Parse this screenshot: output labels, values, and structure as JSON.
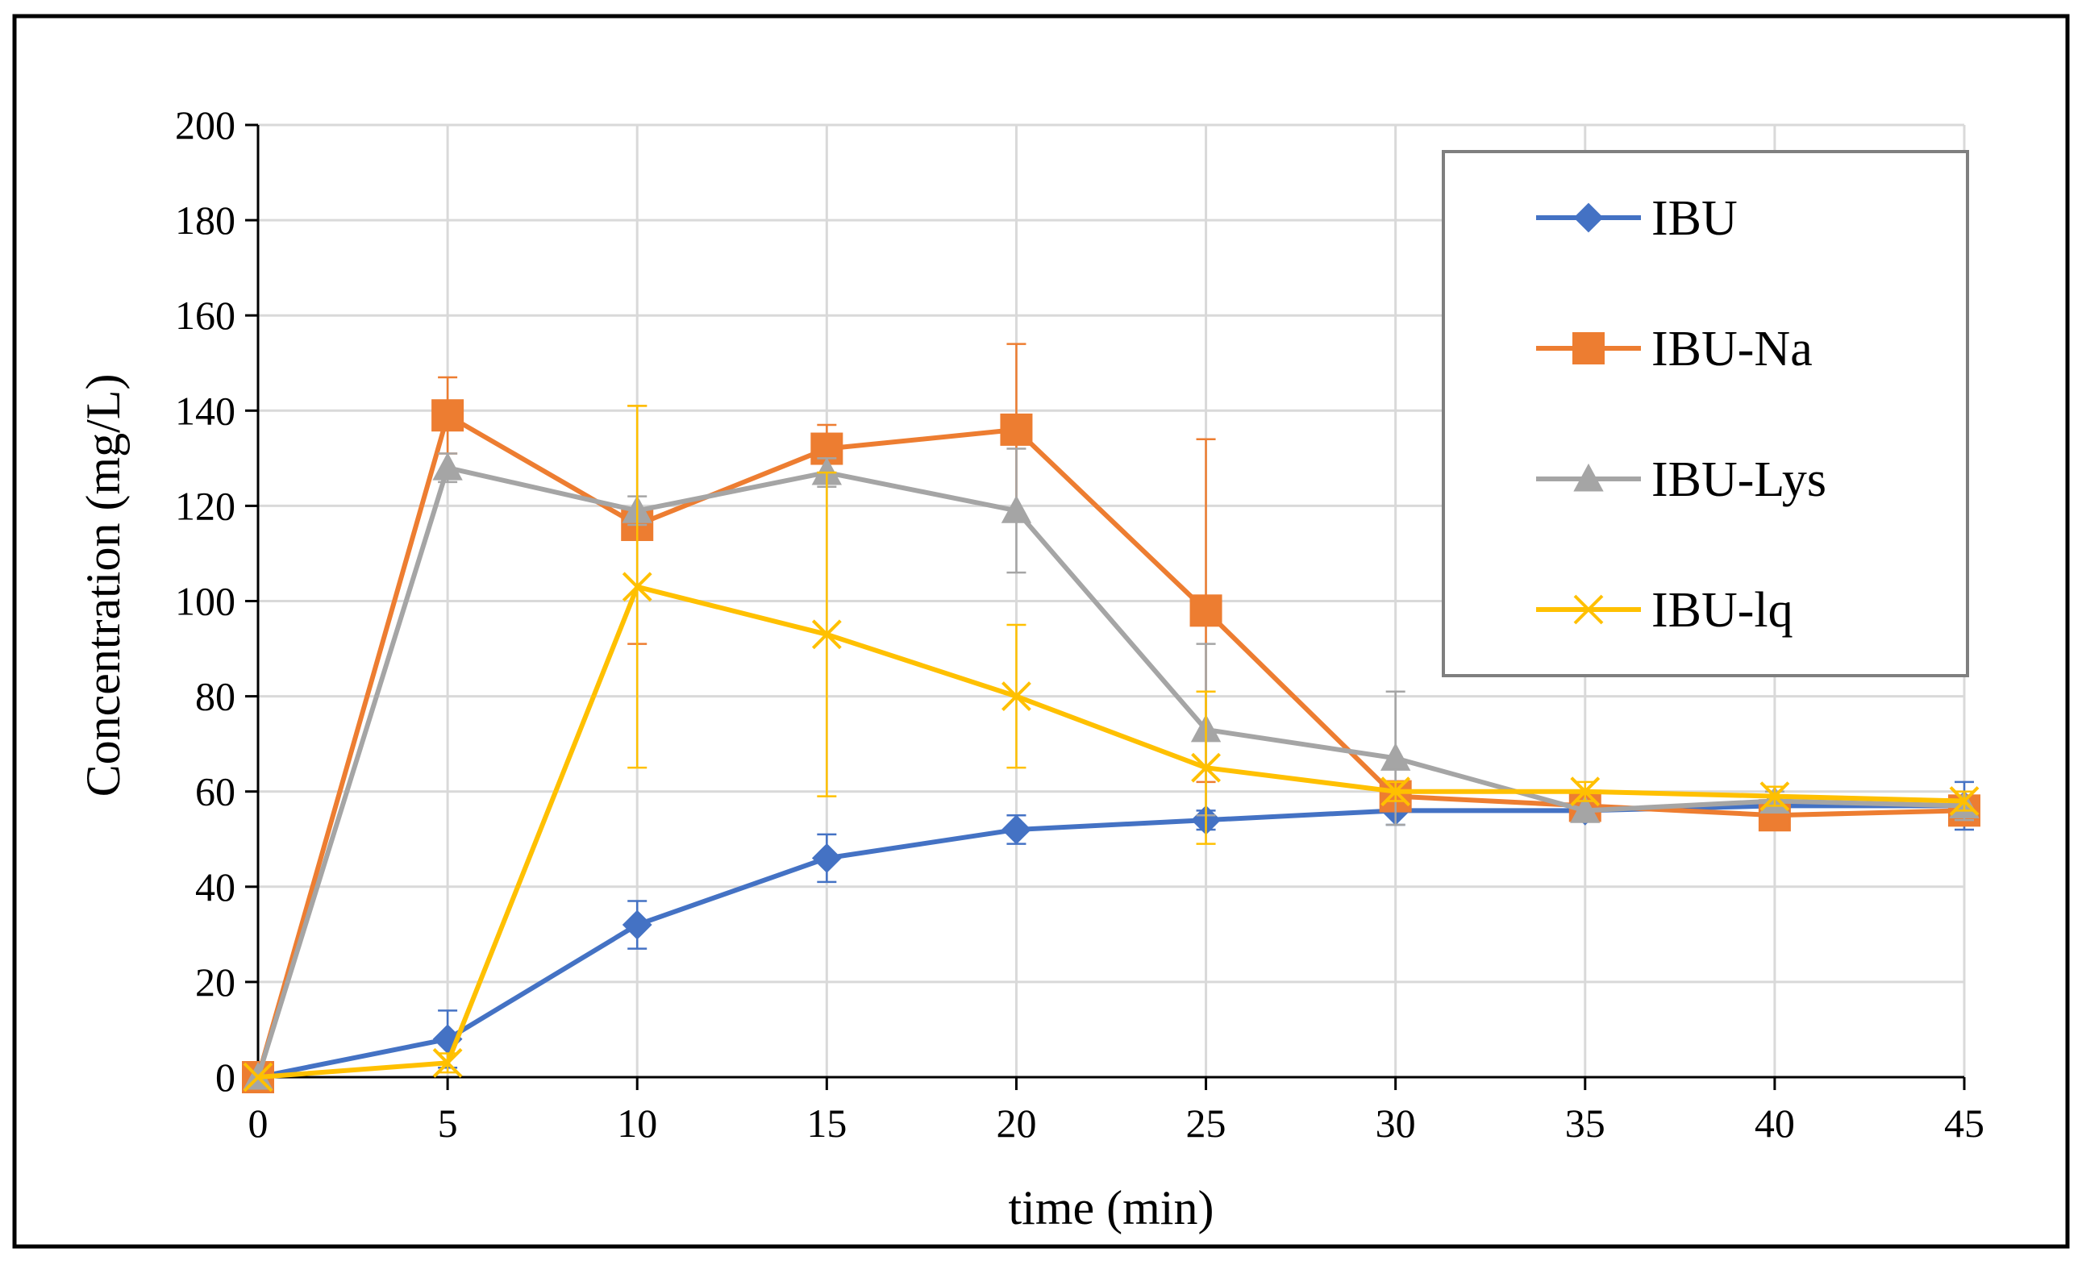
{
  "chart_data": {
    "type": "line",
    "title": "",
    "xlabel": "time (min)",
    "ylabel": "Concentration (mg/L)",
    "xlim": [
      0,
      45
    ],
    "ylim": [
      0,
      200
    ],
    "x_ticks": [
      0,
      5,
      10,
      15,
      20,
      25,
      30,
      35,
      40,
      45
    ],
    "y_ticks": [
      0,
      20,
      40,
      60,
      80,
      100,
      120,
      140,
      160,
      180,
      200
    ],
    "grid": true,
    "legend_position": "top-right",
    "x": [
      0,
      5,
      10,
      15,
      20,
      25,
      30,
      35,
      40,
      45
    ],
    "series": [
      {
        "name": "IBU",
        "color": "#4472C4",
        "marker": "diamond",
        "values": [
          0,
          8,
          32,
          46,
          52,
          54,
          56,
          56,
          57,
          57
        ],
        "errors": [
          0,
          6,
          5,
          5,
          3,
          2,
          3,
          2,
          2,
          5
        ]
      },
      {
        "name": "IBU-Na",
        "color": "#ED7D31",
        "marker": "square",
        "values": [
          0,
          139,
          116,
          132,
          136,
          98,
          59,
          57,
          55,
          56
        ],
        "errors": [
          0,
          8,
          25,
          5,
          18,
          36,
          3,
          2,
          2,
          2
        ]
      },
      {
        "name": "IBU-Lys",
        "color": "#A5A5A5",
        "marker": "triangle",
        "values": [
          0,
          128,
          119,
          127,
          119,
          73,
          67,
          56,
          58,
          57
        ],
        "errors": [
          0,
          3,
          3,
          3,
          13,
          18,
          14,
          2,
          2,
          3
        ]
      },
      {
        "name": "IBU-lq",
        "color": "#FFC000",
        "marker": "x",
        "values": [
          0,
          3,
          103,
          93,
          80,
          65,
          60,
          60,
          59,
          58
        ],
        "errors": [
          0,
          2,
          38,
          34,
          15,
          16,
          2,
          2,
          2,
          2
        ]
      }
    ]
  }
}
